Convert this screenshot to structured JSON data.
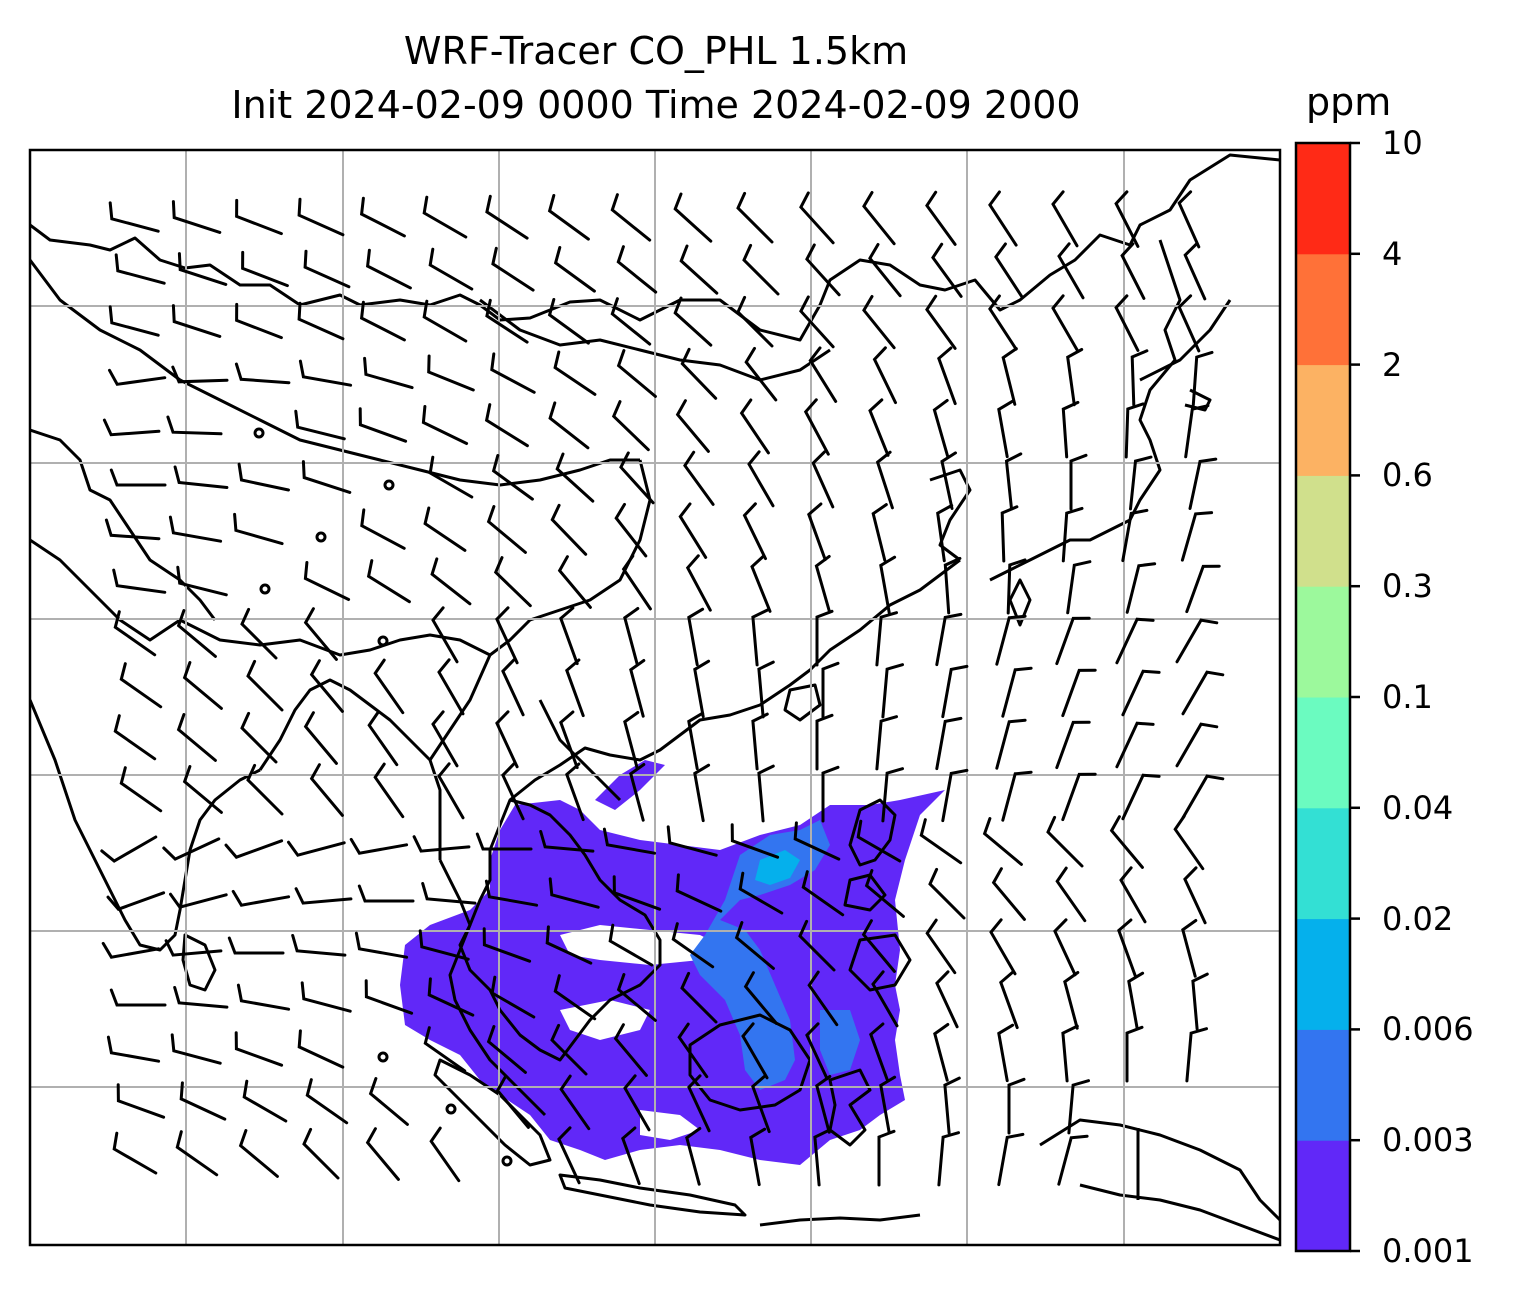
{
  "title_line1": "WRF-Tracer CO_PHL 1.5km",
  "title_line2": "Init 2024-02-09 0000 Time 2024-02-09 2000",
  "colorbar": {
    "unit": "ppm",
    "levels": [
      "0.001",
      "0.003",
      "0.006",
      "0.02",
      "0.04",
      "0.1",
      "0.3",
      "0.6",
      "2",
      "4",
      "10"
    ],
    "colors": [
      "#6128f8",
      "#3375f0",
      "#05b0ec",
      "#33e0d4",
      "#6bfbc0",
      "#9cf99c",
      "#d0e08c",
      "#fcb263",
      "#ff7138",
      "#ff2a16"
    ]
  },
  "map": {
    "land_outline_color": "#000000",
    "gridline_color": "#b0b0b0",
    "wind_barb_color": "#000000",
    "tracer_field_description_colors": [
      "#6128f8",
      "#3375f0",
      "#05b0ec"
    ]
  }
}
